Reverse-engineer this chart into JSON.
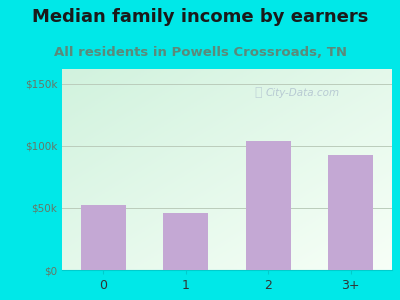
{
  "title": "Median family income by earners",
  "subtitle": "All residents in Powells Crossroads, TN",
  "categories": [
    "0",
    "1",
    "2",
    "3+"
  ],
  "values": [
    52000,
    46000,
    104000,
    93000
  ],
  "bar_color": "#c4a8d4",
  "title_color": "#1a1a1a",
  "subtitle_color": "#5a8a7a",
  "outer_bg": "#00e8e8",
  "yticks": [
    0,
    50000,
    100000,
    150000
  ],
  "ytick_labels": [
    "$0",
    "$50k",
    "$100k",
    "$150k"
  ],
  "ylim": [
    0,
    162000
  ],
  "watermark": "City-Data.com",
  "title_fontsize": 13,
  "subtitle_fontsize": 9.5
}
